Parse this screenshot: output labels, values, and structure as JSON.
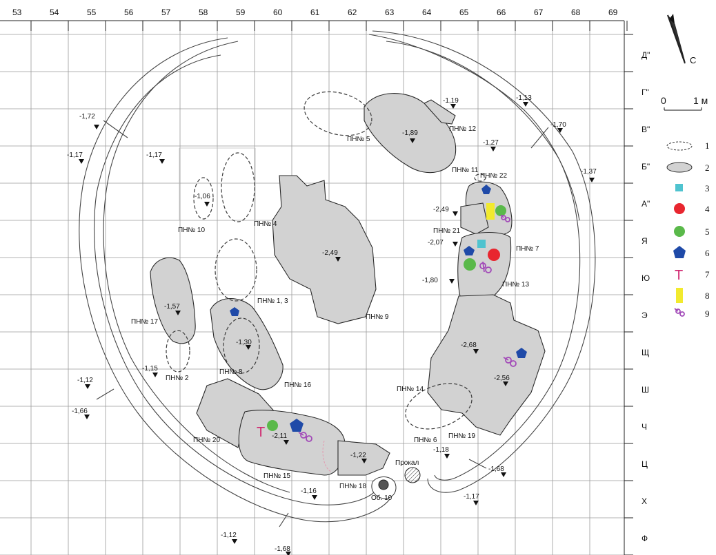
{
  "columns": [
    "53",
    "54",
    "55",
    "56",
    "57",
    "58",
    "59",
    "60",
    "61",
    "62",
    "63",
    "64",
    "65",
    "66",
    "67",
    "68",
    "69"
  ],
  "rows": [
    "Д\"",
    "Г\"",
    "В\"",
    "Б\"",
    "А\"",
    "Я",
    "Ю",
    "Э",
    "Щ",
    "Ш",
    "Ч",
    "Ц",
    "Х",
    "Ф"
  ],
  "north_label": "С",
  "scale": {
    "zero": "0",
    "unit": "1 м"
  },
  "legend": [
    "1",
    "2",
    "3",
    "4",
    "5",
    "6",
    "7",
    "8",
    "9"
  ],
  "legend_colors": {
    "square": "#4fc3cf",
    "circle_red": "#e8262f",
    "circle_green": "#5ab94a",
    "pentagon": "#1f4aa8",
    "letter_T": "#d0266f",
    "rect_yellow": "#f2ea2e",
    "scissors": "#a24ab8"
  },
  "legend_T": "Т",
  "features": {
    "pn1_3": "ПН№ 1, 3",
    "pn2": "ПН№ 2",
    "pn4": "ПН№ 4",
    "pn5": "ПН№ 5",
    "pn6": "ПН№ 6",
    "pn7": "ПН№ 7",
    "pn8": "ПН№ 8",
    "pn9": "ПН№ 9",
    "pn10": "ПН№ 10",
    "pn11": "ПН№ 11",
    "pn12": "ПН№ 12",
    "pn13": "ПН№ 13",
    "pn14": "ПН№ 14",
    "pn15": "ПН№ 15",
    "pn16": "ПН№ 16",
    "pn17": "ПН№ 17",
    "pn18": "ПН№ 18",
    "pn19": "ПН№ 19",
    "pn20": "ПН№ 20",
    "pn21": "ПН№ 21",
    "pn22": "ПН№ 22",
    "prokal": "Прокал",
    "ob10": "Об. 10"
  },
  "elevations": {
    "e1": "-1,72",
    "e2": "-1,17",
    "e3": "-1,17",
    "e4": "-1,06",
    "e5": "-1,19",
    "e6": "-1,89",
    "e7": "-1,27",
    "e8": "-1,13",
    "e9": "-1,70",
    "e10": "-1,37",
    "e11": "-2,49",
    "e12": "-2,49",
    "e13": "-2,07",
    "e14": "-1,80",
    "e15": "-1,57",
    "e16": "-1,30",
    "e17": "-1,15",
    "e18": "-1,12",
    "e19": "-1,66",
    "e20": "-2,68",
    "e21": "-2,56",
    "e22": "-2,11",
    "e23": "-1,22",
    "e24": "-1,18",
    "e25": "-1,68",
    "e26": "-1,16",
    "e27": "-1,17",
    "e28": "-1,12",
    "e29": "-1,68"
  }
}
